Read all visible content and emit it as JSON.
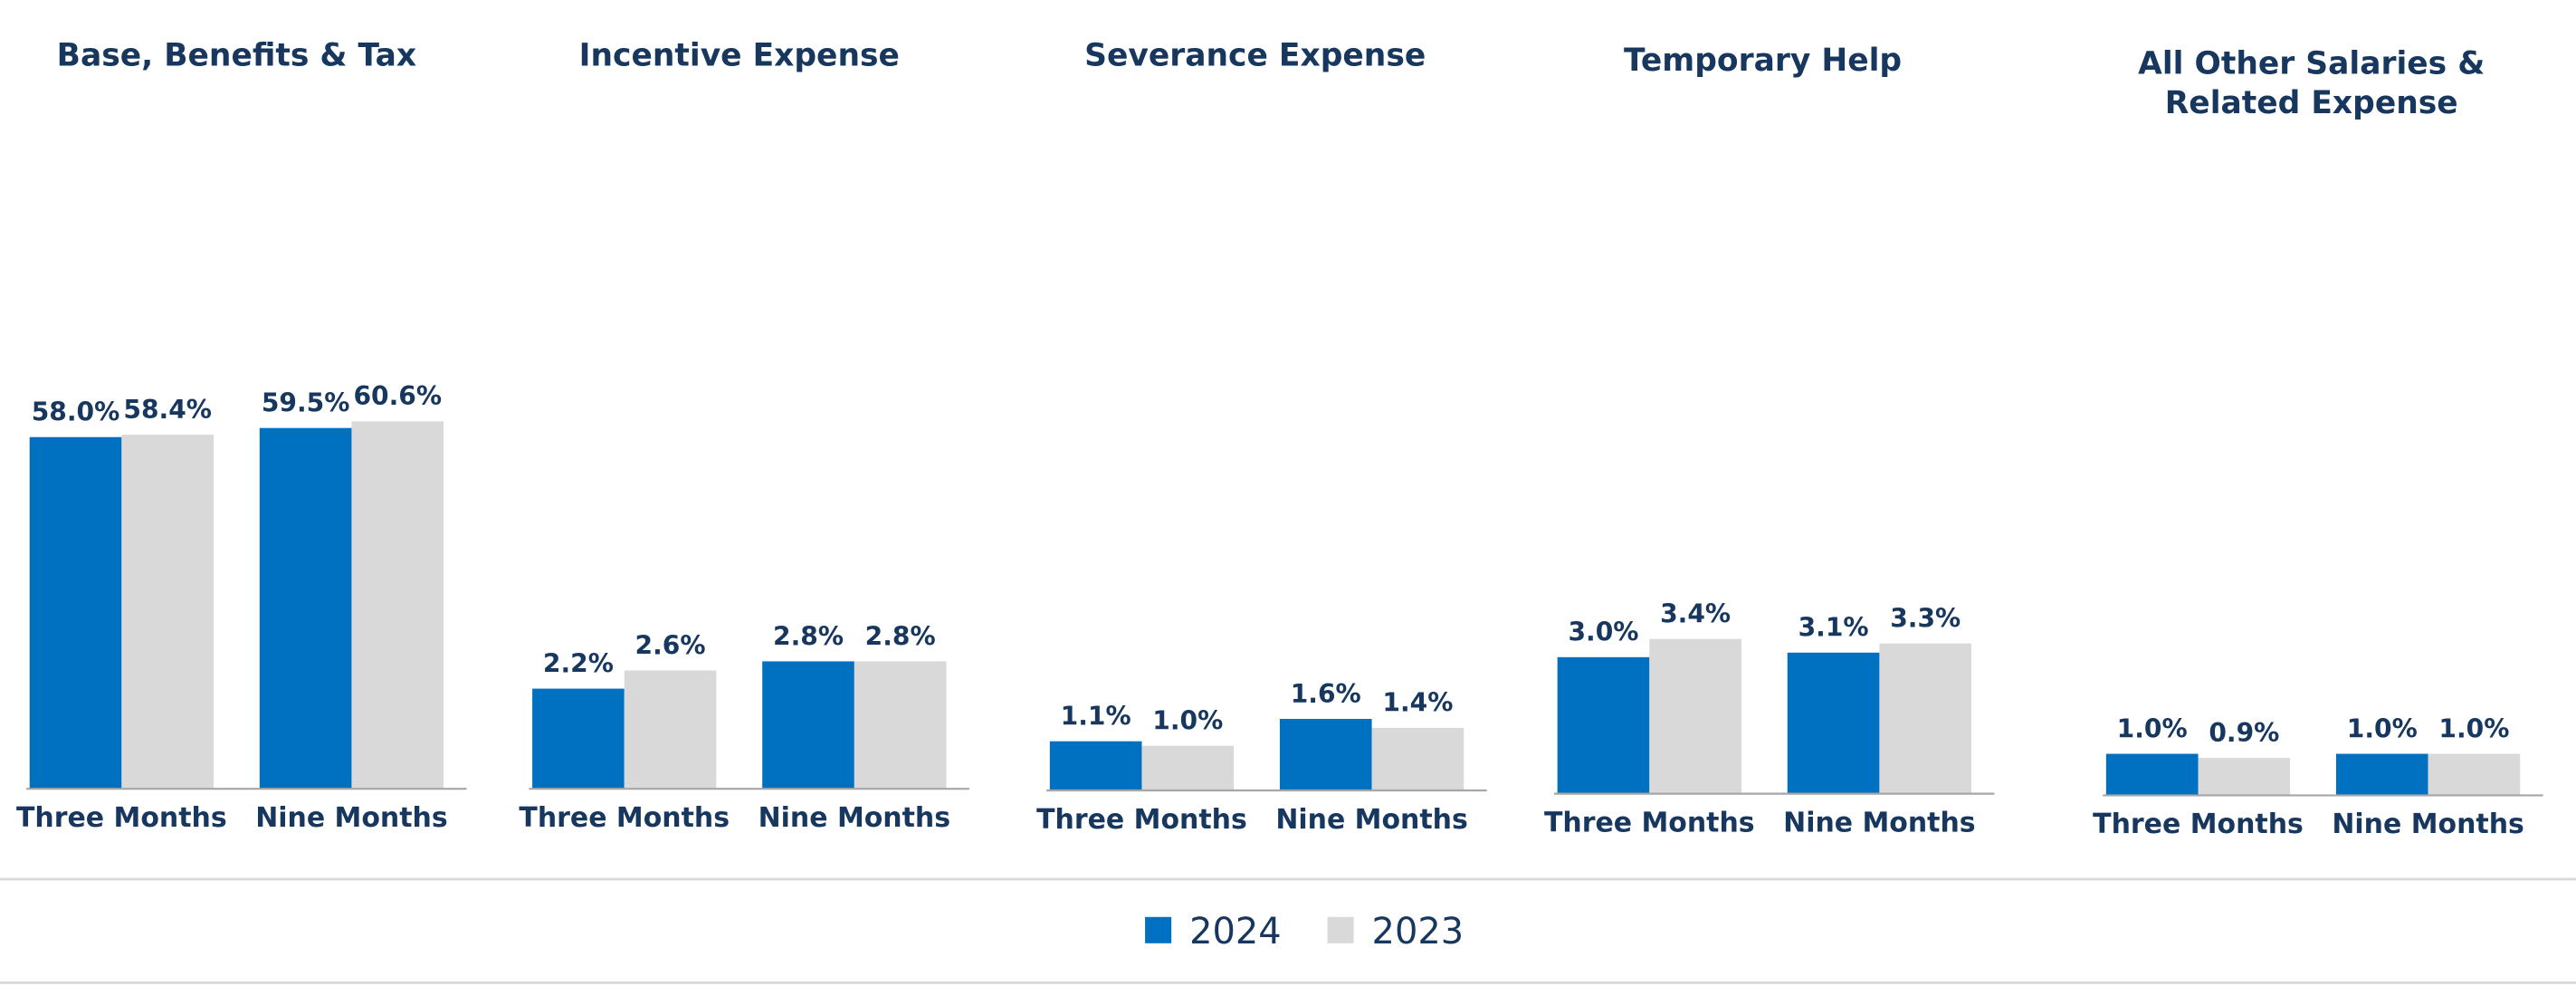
{
  "legend": [
    {
      "name": "2024",
      "color": "#0070c0"
    },
    {
      "name": "2023",
      "color": "#d9d9d9"
    }
  ],
  "chart_data": [
    {
      "type": "bar",
      "title": "Base, Benefits & Tax",
      "categories": [
        "Three Months",
        "Nine Months"
      ],
      "series": [
        {
          "values": [
            58.0,
            59.5
          ],
          "value_labels": [
            "58.0%",
            "59.5%"
          ]
        },
        {
          "values": [
            58.4,
            60.6
          ],
          "value_labels": [
            "58.4%",
            "60.6%"
          ]
        }
      ]
    },
    {
      "type": "bar",
      "title": "Incentive Expense",
      "categories": [
        "Three Months",
        "Nine Months"
      ],
      "series": [
        {
          "values": [
            2.2,
            2.8
          ],
          "value_labels": [
            "2.2%",
            "2.8%"
          ]
        },
        {
          "values": [
            2.6,
            2.8
          ],
          "value_labels": [
            "2.6%",
            "2.8%"
          ]
        }
      ]
    },
    {
      "type": "bar",
      "title": "Severance Expense",
      "categories": [
        "Three Months",
        "Nine Months"
      ],
      "series": [
        {
          "values": [
            1.1,
            1.6
          ],
          "value_labels": [
            "1.1%",
            "1.6%"
          ]
        },
        {
          "values": [
            1.0,
            1.4
          ],
          "value_labels": [
            "1.0%",
            "1.4%"
          ]
        }
      ]
    },
    {
      "type": "bar",
      "title": "Temporary Help",
      "categories": [
        "Three Months",
        "Nine Months"
      ],
      "series": [
        {
          "values": [
            3.0,
            3.1
          ],
          "value_labels": [
            "3.0%",
            "3.1%"
          ]
        },
        {
          "values": [
            3.4,
            3.3
          ],
          "value_labels": [
            "3.4%",
            "3.3%"
          ]
        }
      ]
    },
    {
      "type": "bar",
      "title": "All Other Salaries & Related Expense",
      "categories": [
        "Three Months",
        "Nine Months"
      ],
      "series": [
        {
          "values": [
            1.0,
            1.0
          ],
          "value_labels": [
            "1.0%",
            "1.0%"
          ]
        },
        {
          "values": [
            0.9,
            1.0
          ],
          "value_labels": [
            "0.9%",
            "1.0%"
          ]
        }
      ]
    }
  ]
}
